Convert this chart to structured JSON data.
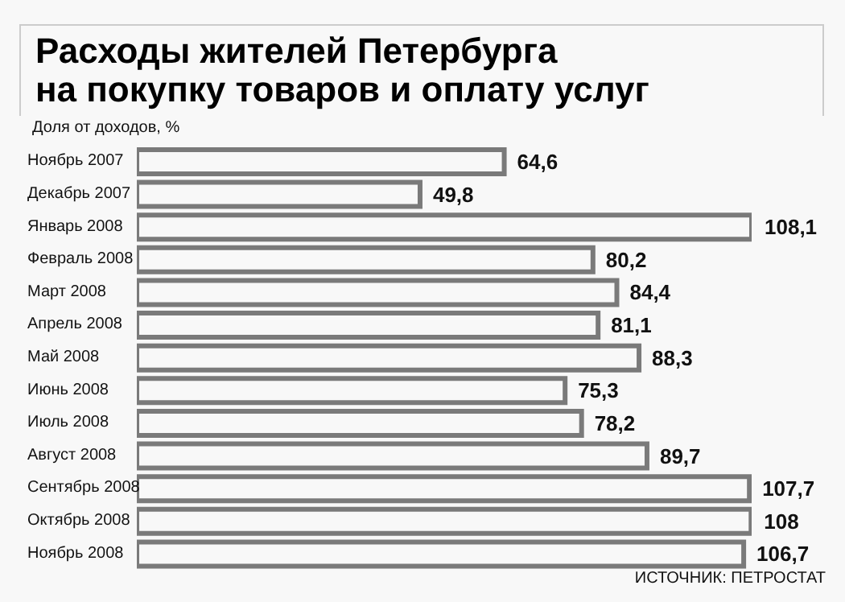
{
  "chart_data": {
    "type": "bar",
    "orientation": "horizontal",
    "title": "Расходы жителей Петербурга\nна покупку товаров и оплату услуг",
    "ylabel": "Доля от доходов, %",
    "categories": [
      "Ноябрь 2007",
      "Декабрь 2007",
      "Январь 2008",
      "Февраль 2008",
      "Март 2008",
      "Апрель 2008",
      "Май 2008",
      "Июнь 2008",
      "Июль 2008",
      "Август 2008",
      "Сентябрь 2008",
      "Октябрь 2008",
      "Ноябрь 2008"
    ],
    "values": [
      64.6,
      49.8,
      108.1,
      80.2,
      84.4,
      81.1,
      88.3,
      75.3,
      78.2,
      89.7,
      107.7,
      108,
      106.7
    ],
    "value_labels": [
      "64,6",
      "49,8",
      "108,1",
      "80,2",
      "84,4",
      "81,1",
      "88,3",
      "75,3",
      "78,2",
      "89,7",
      "107,7",
      "108",
      "106,7"
    ],
    "color": "#7a7a7a",
    "xlim": [
      0,
      108.1
    ],
    "grid": false,
    "annotations": [
      "ИСТОЧНИК: ПЕТРОСТАТ"
    ]
  }
}
